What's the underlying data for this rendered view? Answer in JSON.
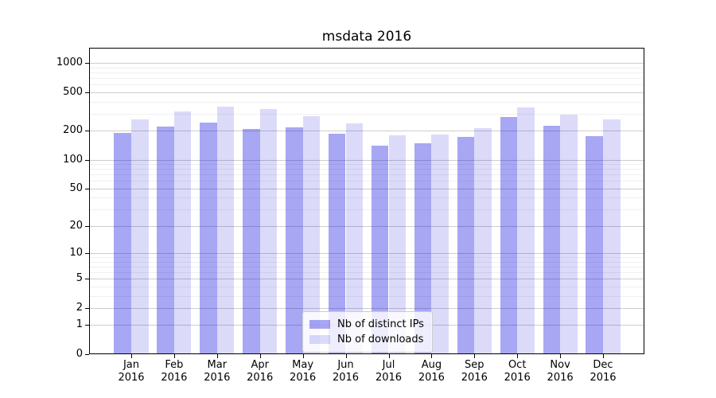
{
  "title": "msdata 2016",
  "legend": {
    "items": [
      {
        "label": "Nb of distinct IPs",
        "key": "ips"
      },
      {
        "label": "Nb of downloads",
        "key": "downloads"
      }
    ]
  },
  "colors": {
    "ips": "rgba(2,2,220,0.35)",
    "downloads": "rgba(16,16,212,0.15)",
    "grid_major": "#cdcdcd",
    "grid_minor": "#f0f0f0",
    "axis": "#000000",
    "legend_border": "#cccccc",
    "legend_bg": "rgba(255,255,255,0.8)"
  },
  "chart_data": {
    "type": "bar",
    "title": "msdata 2016",
    "categories": [
      "Jan 2016",
      "Feb 2016",
      "Mar 2016",
      "Apr 2016",
      "May 2016",
      "Jun 2016",
      "Jul 2016",
      "Aug 2016",
      "Sep 2016",
      "Oct 2016",
      "Nov 2016",
      "Dec 2016"
    ],
    "x_tick_line1": [
      "Jan",
      "Feb",
      "Mar",
      "Apr",
      "May",
      "Jun",
      "Jul",
      "Aug",
      "Sep",
      "Oct",
      "Nov",
      "Dec"
    ],
    "x_tick_line2": "2016",
    "series": [
      {
        "name": "Nb of distinct IPs",
        "key": "ips",
        "values": [
          190,
          222,
          242,
          209,
          217,
          186,
          140,
          148,
          173,
          278,
          224,
          177
        ]
      },
      {
        "name": "Nb of downloads",
        "key": "downloads",
        "values": [
          262,
          317,
          354,
          333,
          284,
          239,
          179,
          182,
          214,
          348,
          294,
          262
        ]
      }
    ],
    "xlabel": "",
    "ylabel": "",
    "yscale": "symlog-like log(1+v)",
    "yticks": [
      0,
      1,
      2,
      5,
      10,
      20,
      50,
      100,
      200,
      500,
      1000
    ],
    "yticks_minor": [
      3,
      4,
      6,
      7,
      8,
      9,
      30,
      40,
      60,
      70,
      80,
      90,
      300,
      400,
      600,
      700,
      800,
      900
    ],
    "ylim": [
      0,
      1430
    ],
    "grid": "horizontal major + minor",
    "legend_position": "lower center"
  }
}
